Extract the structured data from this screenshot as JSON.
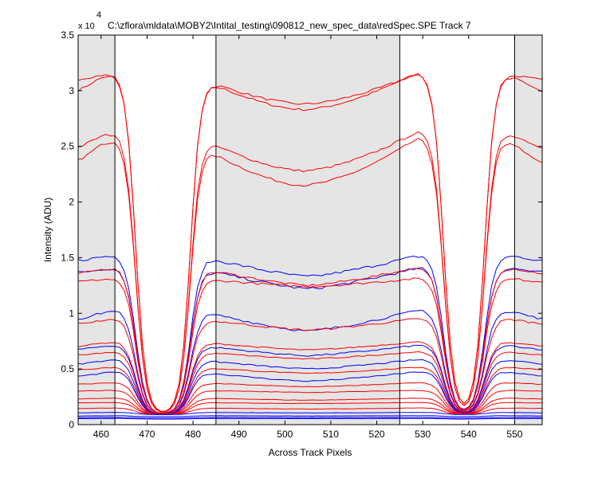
{
  "chart_data": {
    "type": "line",
    "title": "C:\\zflora\\mldata\\MOBY2\\Intital_testing\\090812_new_spec_data\\redSpec.SPE   Track 7",
    "xlabel": "Across Track Pixels",
    "ylabel": "Intensity (ADU)",
    "y_exponent_label": "x 10",
    "y_exponent": "4",
    "xlim": [
      455,
      556
    ],
    "ylim": [
      0,
      35000
    ],
    "x_ticks": [
      460,
      470,
      480,
      490,
      500,
      510,
      520,
      530,
      540,
      550
    ],
    "y_ticks": [
      0,
      5000,
      10000,
      15000,
      20000,
      25000,
      30000,
      35000
    ],
    "y_tick_labels": [
      "0",
      "0.5",
      "1",
      "1.5",
      "2",
      "2.5",
      "3",
      "3.5"
    ],
    "grid": false,
    "shaded_regions": [
      [
        455,
        463
      ],
      [
        485,
        525
      ],
      [
        550,
        556
      ]
    ],
    "vertical_lines": [
      463,
      485,
      525,
      550
    ],
    "colors": {
      "red": "#ff0000",
      "blue": "#0000ff",
      "shade": "#e5e5e5",
      "frame": "#000000"
    },
    "series": [
      {
        "color": "red",
        "shape": "bowl",
        "plateau": 31700,
        "dip": 28300,
        "edge": 29700,
        "noise": 200
      },
      {
        "color": "red",
        "shape": "bowl",
        "plateau": 31600,
        "dip": 28800,
        "edge": 30900,
        "noise": 200
      },
      {
        "color": "red",
        "shape": "bowl",
        "plateau": 25800,
        "dip": 21500,
        "edge": 23300,
        "noise": 200
      },
      {
        "color": "red",
        "shape": "bowl",
        "plateau": 26400,
        "dip": 22800,
        "edge": 24600,
        "noise": 200
      },
      {
        "color": "blue",
        "shape": "flat",
        "plateau": 15300,
        "dip": 13300,
        "edge": 14700,
        "noise": 250
      },
      {
        "color": "blue",
        "shape": "flat",
        "plateau": 14200,
        "dip": 12200,
        "edge": 13600,
        "noise": 250
      },
      {
        "color": "red",
        "shape": "flat",
        "plateau": 14200,
        "dip": 12500,
        "edge": 13500,
        "noise": 200
      },
      {
        "color": "red",
        "shape": "flat",
        "plateau": 13200,
        "dip": 12400,
        "edge": 12800,
        "noise": 200
      },
      {
        "color": "blue",
        "shape": "flat",
        "plateau": 10400,
        "dip": 8400,
        "edge": 9400,
        "noise": 200
      },
      {
        "color": "red",
        "shape": "flat",
        "plateau": 9600,
        "dip": 8500,
        "edge": 9000,
        "noise": 180
      },
      {
        "color": "red",
        "shape": "flat",
        "plateau": 7500,
        "dip": 6700,
        "edge": 7000,
        "noise": 120
      },
      {
        "color": "blue",
        "shape": "flat",
        "plateau": 7200,
        "dip": 6200,
        "edge": 6700,
        "noise": 140
      },
      {
        "color": "red",
        "shape": "flat",
        "plateau": 6600,
        "dip": 5900,
        "edge": 6200,
        "noise": 100
      },
      {
        "color": "blue",
        "shape": "flat",
        "plateau": 5900,
        "dip": 5000,
        "edge": 5400,
        "noise": 120
      },
      {
        "color": "red",
        "shape": "flat",
        "plateau": 5200,
        "dip": 4600,
        "edge": 4900,
        "noise": 80
      },
      {
        "color": "blue",
        "shape": "flat",
        "plateau": 4800,
        "dip": 3900,
        "edge": 4300,
        "noise": 100
      },
      {
        "color": "red",
        "shape": "flat",
        "plateau": 3800,
        "dip": 3400,
        "edge": 3600,
        "noise": 60
      },
      {
        "color": "red",
        "shape": "flat",
        "plateau": 3100,
        "dip": 2900,
        "edge": 3000,
        "noise": 50
      },
      {
        "color": "red",
        "shape": "flat",
        "plateau": 2400,
        "dip": 2200,
        "edge": 2300,
        "noise": 40
      },
      {
        "color": "red",
        "shape": "flat",
        "plateau": 2000,
        "dip": 1900,
        "edge": 1950,
        "noise": 30
      },
      {
        "color": "red",
        "shape": "flat",
        "plateau": 1500,
        "dip": 1400,
        "edge": 1450,
        "noise": 30
      },
      {
        "color": "blue",
        "shape": "flat",
        "plateau": 1100,
        "dip": 1050,
        "edge": 1050,
        "noise": 20
      },
      {
        "color": "blue",
        "shape": "flat",
        "plateau": 800,
        "dip": 780,
        "edge": 780,
        "noise": 15
      },
      {
        "color": "blue",
        "shape": "flat",
        "plateau": 650,
        "dip": 640,
        "edge": 640,
        "noise": 10
      },
      {
        "color": "blue",
        "shape": "flat",
        "plateau": 550,
        "dip": 540,
        "edge": 540,
        "noise": 10
      }
    ]
  }
}
